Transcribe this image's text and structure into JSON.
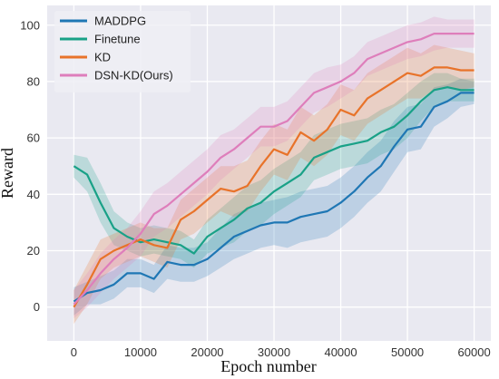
{
  "chart_data": {
    "type": "line",
    "xlabel": "Epoch number",
    "ylabel": "Reward",
    "xlim": [
      -4000,
      62500
    ],
    "ylim": [
      -12,
      107
    ],
    "xticks": [
      0,
      10000,
      20000,
      30000,
      40000,
      50000,
      60000
    ],
    "yticks": [
      0,
      20,
      40,
      60,
      80,
      100
    ],
    "grid": true,
    "background": "#e9e9f1",
    "legend_position": "top-left",
    "series": [
      {
        "name": "MADDPG",
        "color": "#1f77b4",
        "x": [
          0,
          2000,
          4000,
          6000,
          8000,
          10000,
          12000,
          14000,
          16000,
          18000,
          20000,
          22000,
          24000,
          26000,
          28000,
          30000,
          32000,
          34000,
          36000,
          38000,
          40000,
          42000,
          44000,
          46000,
          48000,
          50000,
          52000,
          54000,
          56000,
          58000,
          60000
        ],
        "y": [
          2,
          5,
          6,
          8,
          12,
          12,
          10,
          16,
          15,
          15,
          17,
          21,
          25,
          27,
          29,
          30,
          30,
          32,
          33,
          34,
          37,
          41,
          46,
          50,
          57,
          63,
          64,
          71,
          73,
          76,
          76
        ],
        "band": [
          5,
          4,
          5,
          5,
          5,
          5,
          5,
          6,
          6,
          6,
          6,
          7,
          8,
          8,
          8,
          8,
          9,
          9,
          9,
          9,
          9,
          9,
          9,
          9,
          9,
          8,
          8,
          7,
          6,
          5,
          4
        ]
      },
      {
        "name": "Finetune",
        "color": "#19a187",
        "x": [
          0,
          2000,
          4000,
          6000,
          8000,
          10000,
          12000,
          14000,
          16000,
          18000,
          20000,
          22000,
          24000,
          26000,
          28000,
          30000,
          32000,
          34000,
          36000,
          38000,
          40000,
          42000,
          44000,
          46000,
          48000,
          50000,
          52000,
          54000,
          56000,
          58000,
          60000
        ],
        "y": [
          50,
          47,
          37,
          28,
          25,
          23,
          24,
          23,
          22,
          19,
          25,
          28,
          31,
          35,
          37,
          41,
          44,
          47,
          53,
          55,
          57,
          58,
          59,
          62,
          64,
          68,
          73,
          77,
          78,
          77,
          77
        ],
        "band": [
          4,
          6,
          7,
          6,
          5,
          5,
          5,
          5,
          5,
          5,
          6,
          7,
          8,
          8,
          8,
          8,
          8,
          8,
          8,
          8,
          8,
          8,
          8,
          8,
          8,
          8,
          7,
          6,
          5,
          4,
          4
        ]
      },
      {
        "name": "KD",
        "color": "#e8732a",
        "x": [
          0,
          2000,
          4000,
          6000,
          8000,
          10000,
          12000,
          14000,
          16000,
          18000,
          20000,
          22000,
          24000,
          26000,
          28000,
          30000,
          32000,
          34000,
          36000,
          38000,
          40000,
          42000,
          44000,
          46000,
          48000,
          50000,
          52000,
          54000,
          56000,
          58000,
          60000
        ],
        "y": [
          0,
          8,
          17,
          20,
          22,
          24,
          22,
          21,
          31,
          34,
          38,
          42,
          41,
          43,
          50,
          56,
          54,
          62,
          59,
          63,
          70,
          68,
          74,
          77,
          80,
          83,
          82,
          85,
          85,
          84,
          84
        ],
        "band": [
          6,
          7,
          7,
          6,
          6,
          6,
          6,
          7,
          7,
          8,
          8,
          8,
          9,
          9,
          9,
          9,
          9,
          9,
          9,
          9,
          9,
          9,
          9,
          9,
          9,
          9,
          8,
          8,
          7,
          7,
          6
        ]
      },
      {
        "name": "DSN-KD(Ours)",
        "color": "#de7ebb",
        "x": [
          0,
          2000,
          4000,
          6000,
          8000,
          10000,
          12000,
          14000,
          16000,
          18000,
          20000,
          22000,
          24000,
          26000,
          28000,
          30000,
          32000,
          34000,
          36000,
          38000,
          40000,
          42000,
          44000,
          46000,
          48000,
          50000,
          52000,
          54000,
          56000,
          58000,
          60000
        ],
        "y": [
          1,
          6,
          12,
          17,
          21,
          26,
          33,
          36,
          40,
          44,
          48,
          53,
          56,
          60,
          64,
          64,
          66,
          71,
          76,
          78,
          80,
          83,
          88,
          90,
          92,
          94,
          95,
          97,
          97,
          97,
          97
        ],
        "band": [
          5,
          6,
          7,
          7,
          7,
          8,
          8,
          8,
          8,
          8,
          8,
          8,
          7,
          7,
          7,
          7,
          7,
          7,
          7,
          7,
          6,
          6,
          6,
          6,
          6,
          6,
          6,
          6,
          5,
          5,
          5
        ]
      }
    ]
  }
}
